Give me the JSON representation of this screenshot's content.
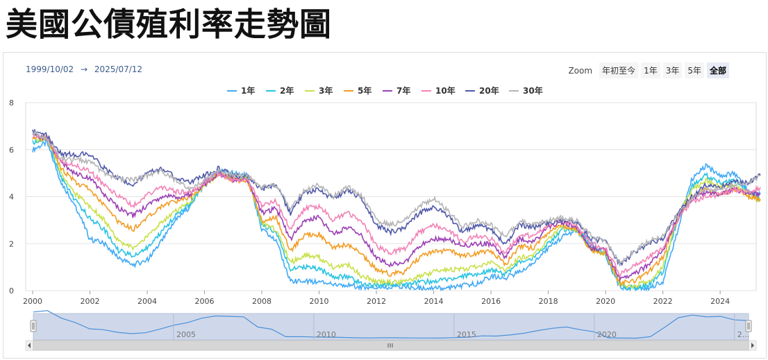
{
  "page": {
    "title": "美國公債殖利率走勢圖"
  },
  "range": {
    "from": "1999/10/02",
    "arrow": "→",
    "to": "2025/07/12"
  },
  "zoom": {
    "label": "Zoom",
    "buttons": [
      "年初至今",
      "1年",
      "3年",
      "5年",
      "全部"
    ],
    "active": "全部"
  },
  "navigator": {
    "labels": [
      "2005",
      "2010",
      "2015",
      "2020",
      "2..."
    ]
  },
  "chart_data": {
    "type": "line",
    "title": "美國公債殖利率走勢圖",
    "xlabel": "",
    "ylabel": "",
    "xlim": [
      2000.0,
      2025.5
    ],
    "ylim": [
      0,
      8
    ],
    "yticks": [
      0,
      2,
      4,
      6,
      8
    ],
    "xticks": [
      2000,
      2002,
      2004,
      2006,
      2008,
      2010,
      2012,
      2014,
      2016,
      2018,
      2020,
      2022,
      2024
    ],
    "legend_position": "top-center",
    "grid": true,
    "x": [
      2000.0,
      2000.5,
      2001.0,
      2001.5,
      2002.0,
      2002.5,
      2003.0,
      2003.5,
      2004.0,
      2004.5,
      2005.0,
      2005.5,
      2006.0,
      2006.5,
      2007.0,
      2007.5,
      2008.0,
      2008.5,
      2009.0,
      2009.5,
      2010.0,
      2010.5,
      2011.0,
      2011.5,
      2012.0,
      2012.5,
      2013.0,
      2013.5,
      2014.0,
      2014.5,
      2015.0,
      2015.5,
      2016.0,
      2016.5,
      2017.0,
      2017.5,
      2018.0,
      2018.5,
      2019.0,
      2019.5,
      2020.0,
      2020.5,
      2021.0,
      2021.5,
      2022.0,
      2022.5,
      2023.0,
      2023.5,
      2024.0,
      2024.5,
      2025.0,
      2025.4
    ],
    "series": [
      {
        "name": "1年",
        "color": "#3fa9f5",
        "values": [
          6.0,
          6.3,
          4.6,
          3.6,
          2.2,
          2.0,
          1.4,
          1.1,
          1.3,
          2.1,
          3.0,
          3.6,
          4.6,
          5.1,
          5.0,
          4.9,
          2.6,
          2.1,
          0.4,
          0.4,
          0.35,
          0.3,
          0.25,
          0.15,
          0.12,
          0.18,
          0.15,
          0.12,
          0.11,
          0.1,
          0.2,
          0.3,
          0.6,
          0.55,
          0.8,
          1.2,
          1.8,
          2.3,
          2.6,
          2.0,
          1.5,
          0.15,
          0.1,
          0.08,
          0.4,
          2.5,
          4.7,
          5.3,
          4.9,
          5.0,
          4.2,
          4.1
        ]
      },
      {
        "name": "2年",
        "color": "#29c3e0",
        "values": [
          6.3,
          6.5,
          4.8,
          3.8,
          3.1,
          2.6,
          1.7,
          1.5,
          1.8,
          2.5,
          3.2,
          3.7,
          4.5,
          5.0,
          4.8,
          4.8,
          2.8,
          2.5,
          0.9,
          1.0,
          0.9,
          0.6,
          0.6,
          0.3,
          0.25,
          0.28,
          0.25,
          0.35,
          0.4,
          0.5,
          0.6,
          0.7,
          0.9,
          0.7,
          1.2,
          1.4,
          2.0,
          2.6,
          2.6,
          1.8,
          1.6,
          0.2,
          0.12,
          0.25,
          0.8,
          3.0,
          4.4,
          4.9,
          4.6,
          4.7,
          4.2,
          3.9
        ]
      },
      {
        "name": "3年",
        "color": "#c9e04a",
        "values": [
          6.4,
          6.5,
          5.0,
          4.1,
          3.6,
          3.0,
          2.1,
          1.8,
          2.3,
          2.9,
          3.4,
          3.8,
          4.5,
          5.0,
          4.8,
          4.8,
          2.9,
          2.6,
          1.2,
          1.5,
          1.4,
          1.0,
          1.1,
          0.6,
          0.4,
          0.35,
          0.35,
          0.6,
          0.8,
          0.9,
          0.9,
          1.0,
          1.2,
          0.8,
          1.4,
          1.5,
          2.2,
          2.7,
          2.6,
          1.7,
          1.6,
          0.22,
          0.2,
          0.4,
          1.0,
          3.1,
          4.3,
          4.7,
          4.4,
          4.5,
          4.1,
          3.8
        ]
      },
      {
        "name": "5年",
        "color": "#f39c24",
        "values": [
          6.5,
          6.5,
          5.2,
          4.6,
          4.3,
          3.6,
          2.9,
          2.6,
          3.1,
          3.6,
          3.8,
          4.0,
          4.5,
          5.0,
          4.7,
          4.7,
          3.0,
          3.1,
          1.7,
          2.4,
          2.4,
          1.8,
          2.0,
          1.5,
          0.9,
          0.7,
          0.8,
          1.4,
          1.7,
          1.7,
          1.5,
          1.6,
          1.7,
          1.1,
          1.9,
          1.8,
          2.5,
          2.8,
          2.6,
          1.7,
          1.6,
          0.3,
          0.4,
          0.8,
          1.4,
          3.1,
          4.0,
          4.3,
          4.1,
          4.3,
          4.0,
          3.9
        ]
      },
      {
        "name": "7年",
        "color": "#9b3fb5",
        "values": [
          6.6,
          6.5,
          5.4,
          5.0,
          4.8,
          4.1,
          3.5,
          3.2,
          3.6,
          4.0,
          4.0,
          4.1,
          4.5,
          5.0,
          4.7,
          4.7,
          3.3,
          3.5,
          2.2,
          3.0,
          3.1,
          2.4,
          2.7,
          2.3,
          1.4,
          1.1,
          1.2,
          1.9,
          2.2,
          2.2,
          1.9,
          2.0,
          2.0,
          1.4,
          2.2,
          2.1,
          2.7,
          2.9,
          2.7,
          1.8,
          1.7,
          0.5,
          0.7,
          1.1,
          1.7,
          3.1,
          3.9,
          4.2,
          4.1,
          4.3,
          4.1,
          4.1
        ]
      },
      {
        "name": "10年",
        "color": "#f283b6",
        "values": [
          6.6,
          6.5,
          5.5,
          5.3,
          5.1,
          4.5,
          4.0,
          3.6,
          4.1,
          4.4,
          4.2,
          4.2,
          4.6,
          5.0,
          4.7,
          4.7,
          3.6,
          3.8,
          2.6,
          3.5,
          3.6,
          3.0,
          3.3,
          2.9,
          1.9,
          1.6,
          1.8,
          2.5,
          2.8,
          2.6,
          2.1,
          2.3,
          2.2,
          1.6,
          2.4,
          2.3,
          2.8,
          3.0,
          2.7,
          2.0,
          1.8,
          0.7,
          1.1,
          1.4,
          1.8,
          3.0,
          3.8,
          4.0,
          4.1,
          4.3,
          4.2,
          4.4
        ]
      },
      {
        "name": "20年",
        "color": "#5059a8",
        "values": [
          6.8,
          6.6,
          5.8,
          5.8,
          5.8,
          5.2,
          4.8,
          4.5,
          5.0,
          5.2,
          4.8,
          4.6,
          4.9,
          5.2,
          4.9,
          4.9,
          4.3,
          4.5,
          3.3,
          4.2,
          4.3,
          3.9,
          4.3,
          3.9,
          2.8,
          2.5,
          2.7,
          3.3,
          3.6,
          3.2,
          2.5,
          2.8,
          2.6,
          2.0,
          2.8,
          2.7,
          2.9,
          3.0,
          2.9,
          2.2,
          2.1,
          1.1,
          1.6,
          2.0,
          2.2,
          3.3,
          4.0,
          4.5,
          4.4,
          4.6,
          4.6,
          4.9
        ]
      },
      {
        "name": "30年",
        "color": "#b5b5b8",
        "values": [
          6.7,
          6.5,
          5.6,
          5.6,
          5.5,
          5.0,
          4.8,
          4.7,
          4.9,
          5.1,
          4.7,
          4.3,
          4.7,
          5.1,
          4.9,
          4.9,
          4.4,
          4.5,
          3.5,
          4.3,
          4.5,
          4.0,
          4.4,
          4.0,
          3.0,
          2.8,
          3.0,
          3.6,
          3.9,
          3.4,
          2.7,
          3.0,
          2.8,
          2.3,
          3.0,
          2.8,
          3.0,
          3.1,
          3.0,
          2.3,
          2.1,
          1.2,
          1.7,
          2.1,
          2.3,
          3.2,
          3.9,
          4.3,
          4.3,
          4.5,
          4.6,
          4.9
        ]
      }
    ]
  }
}
